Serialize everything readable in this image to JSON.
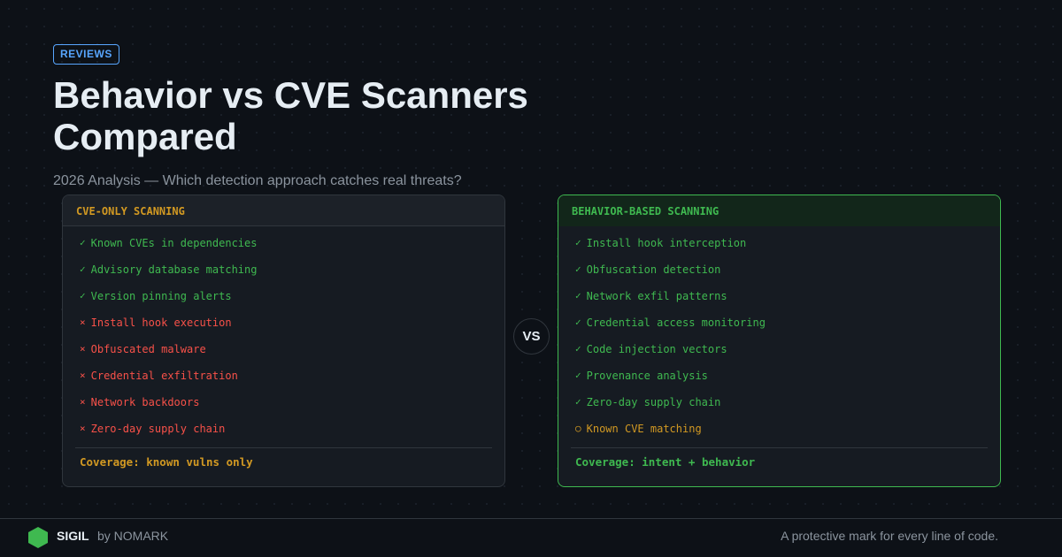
{
  "tag": "REVIEWS",
  "title": "Behavior vs CVE Scanners Compared",
  "subtitle": "2026 Analysis — Which detection approach catches real threats?",
  "vs": "VS",
  "left": {
    "header": "CVE-ONLY SCANNING",
    "coverage": "Coverage: known vulns only",
    "items": [
      {
        "mark": "✓",
        "status": "ok",
        "label": "Known CVEs in dependencies"
      },
      {
        "mark": "✓",
        "status": "ok",
        "label": "Advisory database matching"
      },
      {
        "mark": "✓",
        "status": "ok",
        "label": "Version pinning alerts"
      },
      {
        "mark": "×",
        "status": "bad",
        "label": "Install hook execution"
      },
      {
        "mark": "×",
        "status": "bad",
        "label": "Obfuscated malware"
      },
      {
        "mark": "×",
        "status": "bad",
        "label": "Credential exfiltration"
      },
      {
        "mark": "×",
        "status": "bad",
        "label": "Network backdoors"
      },
      {
        "mark": "×",
        "status": "bad",
        "label": "Zero-day supply chain"
      }
    ]
  },
  "right": {
    "header": "BEHAVIOR-BASED SCANNING",
    "coverage": "Coverage: intent + behavior",
    "items": [
      {
        "mark": "✓",
        "status": "ok",
        "label": "Install hook interception"
      },
      {
        "mark": "✓",
        "status": "ok",
        "label": "Obfuscation detection"
      },
      {
        "mark": "✓",
        "status": "ok",
        "label": "Network exfil patterns"
      },
      {
        "mark": "✓",
        "status": "ok",
        "label": "Credential access monitoring"
      },
      {
        "mark": "✓",
        "status": "ok",
        "label": "Code injection vectors"
      },
      {
        "mark": "✓",
        "status": "ok",
        "label": "Provenance analysis"
      },
      {
        "mark": "✓",
        "status": "ok",
        "label": "Zero-day supply chain"
      },
      {
        "mark": "○",
        "status": "warn",
        "label": "Known CVE matching"
      }
    ]
  },
  "footer": {
    "brand": "SIGIL",
    "by": "by NOMARK",
    "tagline": "A protective mark for every line of code.",
    "logo_icon": "hexagon-icon",
    "logo_color": "#3fb950"
  },
  "colors": {
    "ok": "#3fb950",
    "bad": "#f85149",
    "warn": "#d29922",
    "accent": "#58a6ff"
  }
}
